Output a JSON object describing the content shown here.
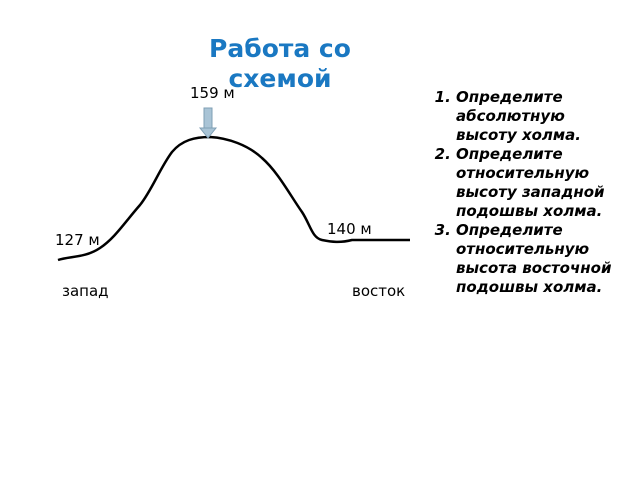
{
  "title": "Работа со схемой",
  "labels": {
    "peak": "159 м",
    "west_foot": "127 м",
    "east_foot": "140 м",
    "west": "запад",
    "east": "восток"
  },
  "tasks": [
    "Определите абсолютную высоту холма.",
    "Определите относительную высоту западной подошвы холма.",
    "Определите относительную высота восточной подошвы холма."
  ]
}
